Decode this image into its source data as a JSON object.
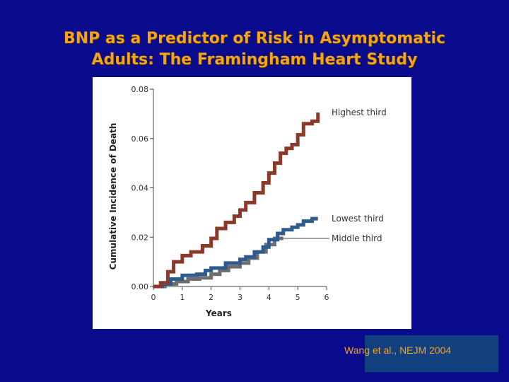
{
  "slide": {
    "title_line1": "BNP as a Predictor of Risk in Asymptomatic",
    "title_line2": "Adults: The Framingham Heart Study",
    "citation": "Wang et al., NEJM 2004"
  },
  "colors": {
    "background": "#0a0a8c",
    "title": "#f5a31a",
    "highest_third": "#8b3a2a",
    "lowest_third": "#2e5a8e",
    "middle_third": "#6e6e6e",
    "citation_box": "#123f7e"
  },
  "chart_data": {
    "type": "line",
    "step": true,
    "xlabel": "Years",
    "ylabel": "Cumulative Incidence of Death",
    "xlim": [
      0,
      6
    ],
    "ylim": [
      0,
      0.08
    ],
    "x_ticks": [
      "0",
      "1",
      "2",
      "3",
      "4",
      "5",
      "6"
    ],
    "y_ticks": [
      "0.00",
      "0.02",
      "0.04",
      "0.06",
      "0.08"
    ],
    "grid": false,
    "series": [
      {
        "name": "Highest third",
        "x": [
          0,
          0.25,
          0.5,
          0.7,
          1.0,
          1.3,
          1.7,
          2.0,
          2.2,
          2.5,
          2.8,
          3.0,
          3.2,
          3.5,
          3.8,
          4.0,
          4.2,
          4.4,
          4.6,
          4.8,
          5.0,
          5.2,
          5.5,
          5.7
        ],
        "y": [
          0.0,
          0.0015,
          0.006,
          0.01,
          0.0125,
          0.014,
          0.0165,
          0.0195,
          0.0235,
          0.026,
          0.0285,
          0.031,
          0.034,
          0.038,
          0.042,
          0.046,
          0.05,
          0.054,
          0.056,
          0.0575,
          0.0615,
          0.066,
          0.067,
          0.0705
        ]
      },
      {
        "name": "Lowest third",
        "x": [
          0,
          0.3,
          0.6,
          1.0,
          1.5,
          1.8,
          2.0,
          2.5,
          3.0,
          3.2,
          3.5,
          3.8,
          4.0,
          4.3,
          4.5,
          4.8,
          5.0,
          5.2,
          5.5,
          5.7
        ],
        "y": [
          0.0,
          0.001,
          0.003,
          0.0045,
          0.005,
          0.0065,
          0.0075,
          0.0095,
          0.011,
          0.012,
          0.014,
          0.016,
          0.019,
          0.0215,
          0.023,
          0.024,
          0.025,
          0.0265,
          0.0275,
          0.0275
        ]
      },
      {
        "name": "Middle third",
        "x": [
          0,
          0.4,
          0.8,
          1.2,
          1.6,
          2.0,
          2.3,
          2.6,
          3.0,
          3.3,
          3.6,
          3.9,
          4.2,
          4.5
        ],
        "y": [
          0.0,
          0.001,
          0.002,
          0.003,
          0.0035,
          0.005,
          0.0065,
          0.008,
          0.0095,
          0.0115,
          0.014,
          0.017,
          0.0195,
          0.0195
        ]
      }
    ]
  }
}
